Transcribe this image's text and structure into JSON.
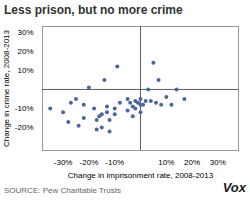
{
  "chart_data": {
    "type": "scatter",
    "title": "Less prison, but no more crime",
    "xlabel": "Change in imprisonment rate, 2008-2013",
    "ylabel": "Change in crime rate, 2008-2013",
    "annotations": [
      "SOURCE: Pew Charitable Trusts",
      "Vox"
    ],
    "color": "#4a6799",
    "grid": false,
    "xlim": [
      -0.38,
      0.38
    ],
    "ylim": [
      -0.32,
      0.33
    ],
    "xticks": [
      {
        "value": -0.3,
        "label": "-30%"
      },
      {
        "value": -0.2,
        "label": "-20%"
      },
      {
        "value": -0.1,
        "label": "-10%"
      },
      {
        "value": 0.1,
        "label": "10%"
      },
      {
        "value": 0.2,
        "label": "20%"
      },
      {
        "value": 0.3,
        "label": "30%"
      }
    ],
    "yticks": [
      {
        "value": -0.2,
        "label": "-20%"
      },
      {
        "value": -0.1,
        "label": "-10%"
      },
      {
        "value": 0.1,
        "label": "10%"
      },
      {
        "value": 0.2,
        "label": "20%"
      },
      {
        "value": 0.3,
        "label": "30%"
      }
    ],
    "x": [
      -0.35,
      -0.3,
      -0.28,
      -0.27,
      -0.25,
      -0.24,
      -0.22,
      -0.22,
      -0.2,
      -0.18,
      -0.17,
      -0.17,
      -0.16,
      -0.15,
      -0.15,
      -0.14,
      -0.13,
      -0.13,
      -0.12,
      -0.12,
      -0.1,
      -0.1,
      -0.09,
      -0.08,
      -0.05,
      -0.05,
      -0.04,
      -0.03,
      -0.03,
      -0.02,
      -0.02,
      -0.01,
      0.0,
      0.0,
      0.0,
      0.01,
      0.02,
      0.03,
      0.04,
      0.05,
      0.06,
      0.07,
      0.08,
      0.1,
      0.12,
      0.14,
      0.17
    ],
    "values": [
      -0.1,
      -0.12,
      -0.17,
      -0.07,
      -0.05,
      -0.19,
      -0.08,
      -0.15,
      0.01,
      -0.1,
      -0.16,
      -0.21,
      -0.14,
      -0.13,
      -0.2,
      0.05,
      -0.09,
      -0.12,
      -0.22,
      -0.16,
      -0.13,
      -0.1,
      0.12,
      -0.07,
      -0.05,
      -0.11,
      -0.07,
      -0.09,
      -0.14,
      -0.06,
      -0.1,
      -0.07,
      -0.05,
      -0.12,
      -0.08,
      -0.08,
      -0.06,
      0.0,
      -0.06,
      0.14,
      -0.07,
      0.05,
      -0.08,
      -0.04,
      -0.08,
      0.0,
      -0.05
    ]
  }
}
